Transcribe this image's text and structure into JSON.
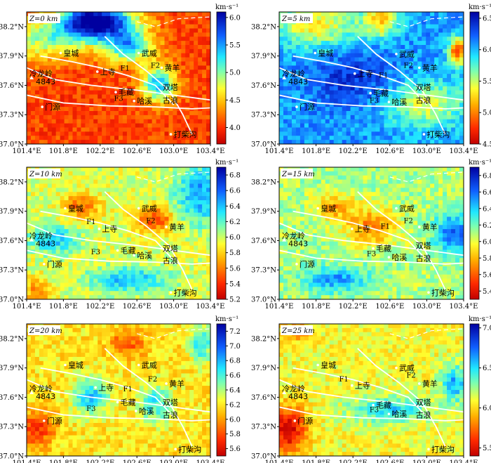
{
  "chart_data": [
    {
      "type": "heatmap",
      "depth_label": "Z=0 km",
      "unit": "km·s⁻¹",
      "zlim": [
        3.7,
        6.1
      ],
      "colorbar_ticks": [
        "6.0",
        "5.5",
        "5.0",
        "4.5",
        "4.0"
      ],
      "colorbar_values": [
        6.0,
        5.5,
        5.0,
        4.5,
        4.0
      ],
      "x_ticks": [
        "101.4°E",
        "101.8°E",
        "102.2°E",
        "102.6°E",
        "103.0°E",
        "103.4°E"
      ],
      "y_ticks": [
        "38.2°N",
        "37.9°N",
        "37.6°N",
        "37.3°N",
        "37.0°N"
      ],
      "xlim": [
        101.4,
        103.4
      ],
      "ylim": [
        37.0,
        38.35
      ],
      "faults": [
        {
          "name": "F1",
          "lon": 102.42,
          "lat": 37.75
        },
        {
          "name": "F2",
          "lon": 102.75,
          "lat": 37.78
        },
        {
          "name": "F3",
          "lon": 102.35,
          "lat": 37.44
        }
      ],
      "places": [
        {
          "name": "皇城",
          "lon": 101.8,
          "lat": 37.93,
          "dot": true
        },
        {
          "name": "武威",
          "lon": 102.65,
          "lat": 37.93,
          "dot": true
        },
        {
          "name": "上寺",
          "lon": 102.2,
          "lat": 37.74,
          "dot": true
        },
        {
          "name": "黄羊",
          "lon": 102.9,
          "lat": 37.78,
          "dot": true
        },
        {
          "name": "冷龙岭",
          "lon": 101.43,
          "lat": 37.72,
          "dot": false
        },
        {
          "name": "4843",
          "lon": 101.5,
          "lat": 37.64,
          "dot": false
        },
        {
          "name": "毛藏",
          "lon": 102.4,
          "lat": 37.53,
          "dot": true
        },
        {
          "name": "双塔",
          "lon": 102.88,
          "lat": 37.58,
          "dot": false
        },
        {
          "name": "哈溪",
          "lon": 102.6,
          "lat": 37.44,
          "dot": true
        },
        {
          "name": "古浪",
          "lon": 102.88,
          "lat": 37.45,
          "dot": false
        },
        {
          "name": "门源",
          "lon": 101.6,
          "lat": 37.38,
          "dot": true
        },
        {
          "name": "打柴沟",
          "lon": 103.0,
          "lat": 37.1,
          "dot": true
        }
      ]
    },
    {
      "type": "heatmap",
      "depth_label": "Z=5 km",
      "unit": "km·s⁻¹",
      "zlim": [
        4.5,
        6.6
      ],
      "colorbar_ticks": [
        "6.5",
        "6.0",
        "5.5",
        "5.0",
        "4.5"
      ],
      "colorbar_values": [
        6.5,
        6.0,
        5.5,
        5.0,
        4.5
      ],
      "x_ticks": [
        "101.4°E",
        "101.8°E",
        "102.2°E",
        "102.6°E",
        "103.0°E",
        "103.4°E"
      ],
      "y_ticks": [
        "38.2°N",
        "37.9°N",
        "37.6°N",
        "37.3°N",
        "37.0°N"
      ],
      "xlim": [
        101.4,
        103.4
      ],
      "ylim": [
        37.0,
        38.35
      ],
      "faults": [
        {
          "name": "F1",
          "lon": 102.48,
          "lat": 37.68
        },
        {
          "name": "F2",
          "lon": 102.75,
          "lat": 37.78
        },
        {
          "name": "F3",
          "lon": 102.38,
          "lat": 37.42
        }
      ],
      "places": [
        {
          "name": "皇城",
          "lon": 101.82,
          "lat": 37.93,
          "dot": true
        },
        {
          "name": "武威",
          "lon": 102.7,
          "lat": 37.92,
          "dot": true
        },
        {
          "name": "上寺",
          "lon": 102.25,
          "lat": 37.72,
          "dot": true
        },
        {
          "name": "黄羊",
          "lon": 102.95,
          "lat": 37.78,
          "dot": true
        },
        {
          "name": "冷龙岭",
          "lon": 101.43,
          "lat": 37.72,
          "dot": false
        },
        {
          "name": "4843",
          "lon": 101.5,
          "lat": 37.64,
          "dot": false
        },
        {
          "name": "毛藏",
          "lon": 102.42,
          "lat": 37.52,
          "dot": true
        },
        {
          "name": "双塔",
          "lon": 102.88,
          "lat": 37.58,
          "dot": false
        },
        {
          "name": "哈溪",
          "lon": 102.62,
          "lat": 37.43,
          "dot": true
        },
        {
          "name": "古浪",
          "lon": 102.88,
          "lat": 37.45,
          "dot": false
        },
        {
          "name": "门源",
          "lon": 101.62,
          "lat": 37.38,
          "dot": true
        },
        {
          "name": "打柴沟",
          "lon": 103.0,
          "lat": 37.1,
          "dot": true
        }
      ]
    },
    {
      "type": "heatmap",
      "depth_label": "Z=10 km",
      "unit": "km·s⁻¹",
      "zlim": [
        5.2,
        6.9
      ],
      "colorbar_ticks": [
        "6.8",
        "6.6",
        "6.4",
        "6.2",
        "6.0",
        "5.8",
        "5.6",
        "5.4",
        "5.2"
      ],
      "colorbar_values": [
        6.8,
        6.6,
        6.4,
        6.2,
        6.0,
        5.8,
        5.6,
        5.4,
        5.2
      ],
      "x_ticks": [
        "101.4°E",
        "101.8°E",
        "102.2°E",
        "102.6°E",
        "103.0°E",
        "103.4°E"
      ],
      "y_ticks": [
        "38.2°N",
        "37.9°N",
        "37.6°N",
        "37.3°N",
        "37.0°N"
      ],
      "xlim": [
        101.4,
        103.4
      ],
      "ylim": [
        37.0,
        38.35
      ],
      "faults": [
        {
          "name": "F1",
          "lon": 102.05,
          "lat": 37.77
        },
        {
          "name": "F2",
          "lon": 102.7,
          "lat": 37.78
        },
        {
          "name": "F3",
          "lon": 102.1,
          "lat": 37.46
        }
      ],
      "places": [
        {
          "name": "皇城",
          "lon": 101.85,
          "lat": 37.93,
          "dot": true
        },
        {
          "name": "武威",
          "lon": 102.65,
          "lat": 37.93,
          "dot": true
        },
        {
          "name": "上寺",
          "lon": 102.22,
          "lat": 37.72,
          "dot": true
        },
        {
          "name": "黄羊",
          "lon": 102.95,
          "lat": 37.74,
          "dot": true
        },
        {
          "name": "冷龙岭",
          "lon": 101.43,
          "lat": 37.65,
          "dot": false
        },
        {
          "name": "4843",
          "lon": 101.5,
          "lat": 37.57,
          "dot": false
        },
        {
          "name": "毛藏",
          "lon": 102.42,
          "lat": 37.5,
          "dot": true
        },
        {
          "name": "双塔",
          "lon": 102.88,
          "lat": 37.52,
          "dot": false
        },
        {
          "name": "哈溪",
          "lon": 102.6,
          "lat": 37.45,
          "dot": true
        },
        {
          "name": "古浪",
          "lon": 102.88,
          "lat": 37.4,
          "dot": false
        },
        {
          "name": "门源",
          "lon": 101.62,
          "lat": 37.36,
          "dot": true
        },
        {
          "name": "打柴沟",
          "lon": 103.0,
          "lat": 37.07,
          "dot": true
        }
      ]
    },
    {
      "type": "heatmap",
      "depth_label": "Z=15 km",
      "unit": "km·s⁻¹",
      "zlim": [
        5.3,
        6.9
      ],
      "colorbar_ticks": [
        "6.8",
        "6.6",
        "6.4",
        "6.2",
        "6.0",
        "5.8",
        "5.6",
        "5.4"
      ],
      "colorbar_values": [
        6.8,
        6.6,
        6.4,
        6.2,
        6.0,
        5.8,
        5.6,
        5.4
      ],
      "x_ticks": [
        "101.4°E",
        "101.8°E",
        "102.2°E",
        "102.6°E",
        "103.0°E",
        "103.4°E"
      ],
      "y_ticks": [
        "38.2°N",
        "37.9°N",
        "37.6°N",
        "37.3°N",
        "37.0°N"
      ],
      "xlim": [
        101.4,
        103.4
      ],
      "ylim": [
        37.0,
        38.35
      ],
      "faults": [
        {
          "name": "F1",
          "lon": 102.5,
          "lat": 37.72
        },
        {
          "name": "F2",
          "lon": 102.75,
          "lat": 37.78
        },
        {
          "name": "F3",
          "lon": 102.35,
          "lat": 37.44
        }
      ],
      "places": [
        {
          "name": "皇城",
          "lon": 101.85,
          "lat": 37.93,
          "dot": true
        },
        {
          "name": "武威",
          "lon": 102.7,
          "lat": 37.93,
          "dot": true
        },
        {
          "name": "上寺",
          "lon": 102.22,
          "lat": 37.72,
          "dot": true
        },
        {
          "name": "黄羊",
          "lon": 102.95,
          "lat": 37.74,
          "dot": true
        },
        {
          "name": "冷龙岭",
          "lon": 101.43,
          "lat": 37.65,
          "dot": false
        },
        {
          "name": "4843",
          "lon": 101.5,
          "lat": 37.57,
          "dot": false
        },
        {
          "name": "毛藏",
          "lon": 102.45,
          "lat": 37.52,
          "dot": true
        },
        {
          "name": "双塔",
          "lon": 102.88,
          "lat": 37.55,
          "dot": false
        },
        {
          "name": "哈溪",
          "lon": 102.62,
          "lat": 37.43,
          "dot": true
        },
        {
          "name": "古浪",
          "lon": 102.88,
          "lat": 37.42,
          "dot": false
        },
        {
          "name": "门源",
          "lon": 101.62,
          "lat": 37.36,
          "dot": true
        },
        {
          "name": "打柴沟",
          "lon": 103.05,
          "lat": 37.07,
          "dot": true
        }
      ]
    },
    {
      "type": "heatmap",
      "depth_label": "Z=20 km",
      "unit": "km·s⁻¹",
      "zlim": [
        5.5,
        7.3
      ],
      "colorbar_ticks": [
        "7.2",
        "7.0",
        "6.8",
        "6.6",
        "6.4",
        "6.2",
        "6.0",
        "5.8",
        "5.6"
      ],
      "colorbar_values": [
        7.2,
        7.0,
        6.8,
        6.6,
        6.4,
        6.2,
        6.0,
        5.8,
        5.6
      ],
      "x_ticks": [
        "101.4°E",
        "101.8°E",
        "102.2°E",
        "102.6°E",
        "103.0°E",
        "103.4°E"
      ],
      "y_ticks": [
        "38.2°N",
        "37.9°N",
        "37.6°N",
        "37.3°N",
        "37.0°N"
      ],
      "xlim": [
        101.4,
        103.4
      ],
      "ylim": [
        37.0,
        38.35
      ],
      "faults": [
        {
          "name": "F1",
          "lon": 102.45,
          "lat": 37.66
        },
        {
          "name": "F2",
          "lon": 102.72,
          "lat": 37.76
        },
        {
          "name": "F3",
          "lon": 102.05,
          "lat": 37.46
        }
      ],
      "places": [
        {
          "name": "皇城",
          "lon": 101.85,
          "lat": 37.93,
          "dot": true
        },
        {
          "name": "武威",
          "lon": 102.65,
          "lat": 37.93,
          "dot": true
        },
        {
          "name": "上寺",
          "lon": 102.18,
          "lat": 37.7,
          "dot": true
        },
        {
          "name": "黄羊",
          "lon": 102.95,
          "lat": 37.74,
          "dot": true
        },
        {
          "name": "冷龙岭",
          "lon": 101.43,
          "lat": 37.69,
          "dot": false
        },
        {
          "name": "4843",
          "lon": 101.5,
          "lat": 37.61,
          "dot": false
        },
        {
          "name": "毛藏",
          "lon": 102.42,
          "lat": 37.55,
          "dot": true
        },
        {
          "name": "双塔",
          "lon": 102.88,
          "lat": 37.55,
          "dot": false
        },
        {
          "name": "哈溪",
          "lon": 102.62,
          "lat": 37.46,
          "dot": true
        },
        {
          "name": "古浪",
          "lon": 102.88,
          "lat": 37.42,
          "dot": false
        },
        {
          "name": "门源",
          "lon": 101.62,
          "lat": 37.36,
          "dot": true
        },
        {
          "name": "打柴沟",
          "lon": 103.05,
          "lat": 37.07,
          "dot": true
        }
      ]
    },
    {
      "type": "heatmap",
      "depth_label": "Z=25 km",
      "unit": "km·s⁻¹",
      "zlim": [
        5.4,
        7.05
      ],
      "colorbar_ticks": [
        "7.0",
        "6.5",
        "6.0",
        "5.5"
      ],
      "colorbar_values": [
        7.0,
        6.5,
        6.0,
        5.5
      ],
      "x_ticks": [
        "101.4°E",
        "101.8°E",
        "102.2°E",
        "102.6°E",
        "103.0°E",
        "103.4°E"
      ],
      "y_ticks": [
        "38.2°N",
        "37.9°N",
        "37.6°N",
        "37.3°N",
        "37.0°N"
      ],
      "xlim": [
        101.4,
        103.4
      ],
      "ylim": [
        37.0,
        38.35
      ],
      "faults": [
        {
          "name": "F1",
          "lon": 102.05,
          "lat": 37.76
        },
        {
          "name": "F2",
          "lon": 102.78,
          "lat": 37.8
        },
        {
          "name": "F3",
          "lon": 102.38,
          "lat": 37.45
        }
      ],
      "places": [
        {
          "name": "皇城",
          "lon": 101.85,
          "lat": 37.93,
          "dot": true
        },
        {
          "name": "武威",
          "lon": 102.7,
          "lat": 37.9,
          "dot": true
        },
        {
          "name": "上寺",
          "lon": 102.22,
          "lat": 37.72,
          "dot": true
        },
        {
          "name": "黄羊",
          "lon": 102.95,
          "lat": 37.74,
          "dot": true
        },
        {
          "name": "冷龙岭",
          "lon": 101.43,
          "lat": 37.69,
          "dot": false
        },
        {
          "name": "4843",
          "lon": 101.5,
          "lat": 37.61,
          "dot": false
        },
        {
          "name": "毛藏",
          "lon": 102.45,
          "lat": 37.52,
          "dot": true
        },
        {
          "name": "双塔",
          "lon": 102.88,
          "lat": 37.55,
          "dot": false
        },
        {
          "name": "哈溪",
          "lon": 102.62,
          "lat": 37.43,
          "dot": true
        },
        {
          "name": "古浪",
          "lon": 102.88,
          "lat": 37.42,
          "dot": false
        },
        {
          "name": "门源",
          "lon": 101.6,
          "lat": 37.36,
          "dot": true
        },
        {
          "name": "打柴沟",
          "lon": 103.05,
          "lat": 37.07,
          "dot": true
        }
      ]
    }
  ]
}
